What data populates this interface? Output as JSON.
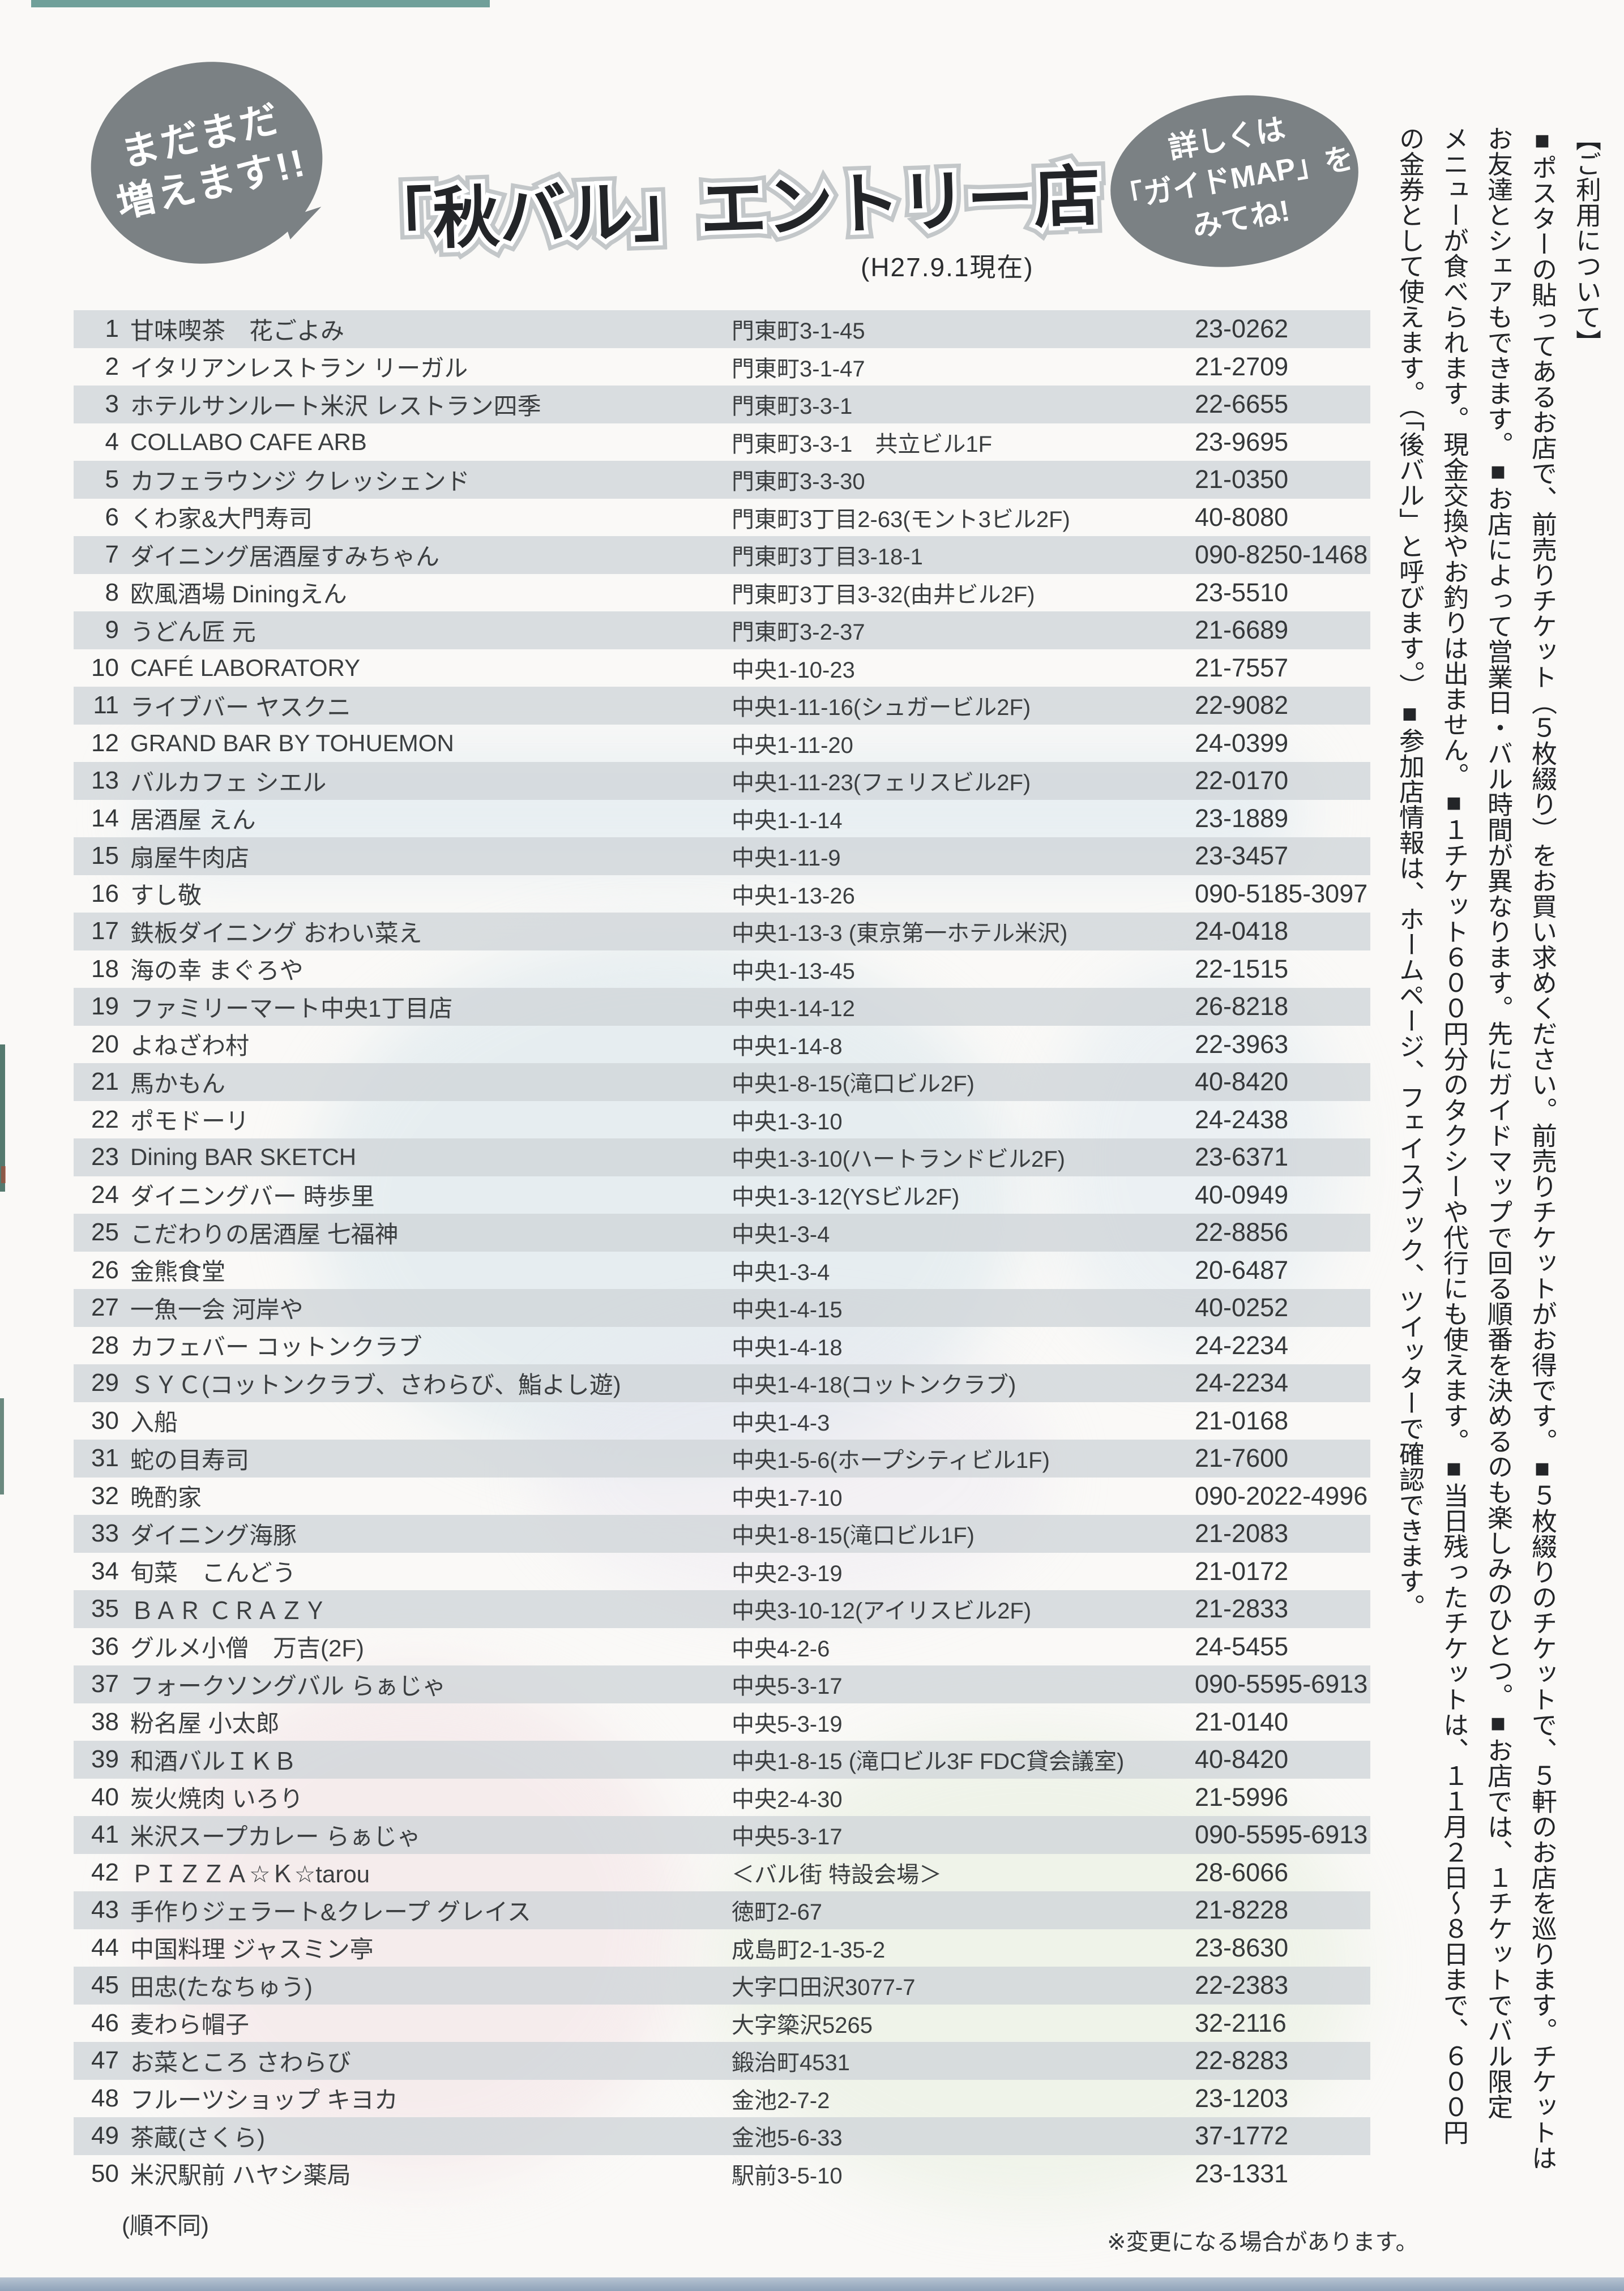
{
  "header": {
    "badge_left": {
      "line1": "まだまだ",
      "line2": "増えます!!"
    },
    "title": "「秋バル」エントリー店",
    "title_date": "(H27.9.1現在)",
    "badge_right": {
      "line1": "詳しくは",
      "line2": "「ガイドMAP」を",
      "line3": "みてね!"
    }
  },
  "usage_notes": {
    "columns": [
      "【ご利用について】",
      "■ポスターの貼ってあるお店で、前売りチケット（５枚綴り）をお買い求めください。前売りチケットがお得です。■５枚綴りのチケットで、５軒のお店を巡ります。チケットは",
      "お友達とシェアもできます。■お店によって営業日・バル時間が異なります。先にガイドマップで回る順番を決めるのも楽しみのひとつ。■お店では、１チケットでバル限定",
      "メニューが食べられます。現金交換やお釣りは出ません。■１チケット６００円分のタクシーや代行にも使えます。■当日残ったチケットは、１１月２日〜８日まで、６００円",
      "の金券として使えます。（「後バル」と呼びます。）■参加店情報は、ホームページ、フェイスブック、ツイッターで確認できます。"
    ]
  },
  "stores": [
    {
      "no": "1",
      "name": "甘味喫茶　花ごよみ",
      "address": "門東町3-1-45",
      "phone": "23-0262"
    },
    {
      "no": "2",
      "name": "イタリアンレストラン リーガル",
      "address": "門東町3-1-47",
      "phone": "21-2709"
    },
    {
      "no": "3",
      "name": "ホテルサンルート米沢 レストラン四季",
      "address": "門東町3-3-1",
      "phone": "22-6655"
    },
    {
      "no": "4",
      "name": "COLLABO CAFE ARB",
      "address": "門東町3-3-1　共立ビル1F",
      "phone": "23-9695"
    },
    {
      "no": "5",
      "name": "カフェラウンジ クレッシェンド",
      "address": "門東町3-3-30",
      "phone": "21-0350"
    },
    {
      "no": "6",
      "name": "くわ家&大門寿司",
      "address": "門東町3丁目2-63(モント3ビル2F)",
      "phone": "40-8080"
    },
    {
      "no": "7",
      "name": "ダイニング居酒屋すみちゃん",
      "address": "門東町3丁目3-18-1",
      "phone": "090-8250-1468"
    },
    {
      "no": "8",
      "name": "欧風酒場 Diningえん",
      "address": "門東町3丁目3-32(由井ビル2F)",
      "phone": "23-5510"
    },
    {
      "no": "9",
      "name": "うどん匠 元",
      "address": "門東町3-2-37",
      "phone": "21-6689"
    },
    {
      "no": "10",
      "name": "CAFÉ LABORATORY",
      "address": "中央1-10-23",
      "phone": "21-7557"
    },
    {
      "no": "11",
      "name": "ライブバー ヤスクニ",
      "address": "中央1-11-16(シュガービル2F)",
      "phone": "22-9082"
    },
    {
      "no": "12",
      "name": "GRAND BAR BY TOHUEMON",
      "address": "中央1-11-20",
      "phone": "24-0399"
    },
    {
      "no": "13",
      "name": "バルカフェ シエル",
      "address": "中央1-11-23(フェリスビル2F)",
      "phone": "22-0170"
    },
    {
      "no": "14",
      "name": "居酒屋 えん",
      "address": "中央1-1-14",
      "phone": "23-1889"
    },
    {
      "no": "15",
      "name": "扇屋牛肉店",
      "address": "中央1-11-9",
      "phone": "23-3457"
    },
    {
      "no": "16",
      "name": "すし敬",
      "address": "中央1-13-26",
      "phone": "090-5185-3097"
    },
    {
      "no": "17",
      "name": "鉄板ダイニング おわい菜え",
      "address": "中央1-13-3 (東京第一ホテル米沢)",
      "phone": "24-0418"
    },
    {
      "no": "18",
      "name": "海の幸 まぐろや",
      "address": "中央1-13-45",
      "phone": "22-1515"
    },
    {
      "no": "19",
      "name": "ファミリーマート中央1丁目店",
      "address": "中央1-14-12",
      "phone": "26-8218"
    },
    {
      "no": "20",
      "name": "よねざわ村",
      "address": "中央1-14-8",
      "phone": "22-3963"
    },
    {
      "no": "21",
      "name": "馬かもん",
      "address": "中央1-8-15(滝口ビル2F)",
      "phone": "40-8420"
    },
    {
      "no": "22",
      "name": "ポモドーリ",
      "address": "中央1-3-10",
      "phone": "24-2438"
    },
    {
      "no": "23",
      "name": "Dining BAR SKETCH",
      "address": "中央1-3-10(ハートランドビル2F)",
      "phone": "23-6371"
    },
    {
      "no": "24",
      "name": "ダイニングバー 時歩里",
      "address": "中央1-3-12(YSビル2F)",
      "phone": "40-0949"
    },
    {
      "no": "25",
      "name": "こだわりの居酒屋 七福神",
      "address": "中央1-3-4",
      "phone": "22-8856"
    },
    {
      "no": "26",
      "name": "金熊食堂",
      "address": "中央1-3-4",
      "phone": "20-6487"
    },
    {
      "no": "27",
      "name": "一魚一会 河岸や",
      "address": "中央1-4-15",
      "phone": "40-0252"
    },
    {
      "no": "28",
      "name": "カフェバー コットンクラブ",
      "address": "中央1-4-18",
      "phone": "24-2234"
    },
    {
      "no": "29",
      "name": "ＳＹＣ(コットンクラブ、さわらび、鮨よし遊)",
      "address": "中央1-4-18(コットンクラブ)",
      "phone": "24-2234"
    },
    {
      "no": "30",
      "name": "入船",
      "address": "中央1-4-3",
      "phone": "21-0168"
    },
    {
      "no": "31",
      "name": "蛇の目寿司",
      "address": "中央1-5-6(ホープシティビル1F)",
      "phone": "21-7600"
    },
    {
      "no": "32",
      "name": "晩酌家",
      "address": "中央1-7-10",
      "phone": "090-2022-4996"
    },
    {
      "no": "33",
      "name": "ダイニング海豚",
      "address": "中央1-8-15(滝口ビル1F)",
      "phone": "21-2083"
    },
    {
      "no": "34",
      "name": "旬菜　こんどう",
      "address": "中央2-3-19",
      "phone": "21-0172"
    },
    {
      "no": "35",
      "name": "ＢＡＲ ＣＲＡＺＹ",
      "address": "中央3-10-12(アイリスビル2F)",
      "phone": "21-2833"
    },
    {
      "no": "36",
      "name": "グルメ小僧　万吉(2F)",
      "address": "中央4-2-6",
      "phone": "24-5455"
    },
    {
      "no": "37",
      "name": "フォークソングバル らぁじゃ",
      "address": "中央5-3-17",
      "phone": "090-5595-6913"
    },
    {
      "no": "38",
      "name": "粉名屋 小太郎",
      "address": "中央5-3-19",
      "phone": "21-0140"
    },
    {
      "no": "39",
      "name": "和酒バルＩＫＢ",
      "address": "中央1-8-15 (滝口ビル3F FDC貸会議室)",
      "phone": "40-8420"
    },
    {
      "no": "40",
      "name": "炭火焼肉 いろり",
      "address": "中央2-4-30",
      "phone": "21-5996"
    },
    {
      "no": "41",
      "name": "米沢スープカレー らぁじゃ",
      "address": "中央5-3-17",
      "phone": "090-5595-6913"
    },
    {
      "no": "42",
      "name": "ＰＩＺＺＡ☆Ｋ☆tarou",
      "address": "＜バル街 特設会場＞",
      "phone": "28-6066"
    },
    {
      "no": "43",
      "name": "手作りジェラート&クレープ グレイス",
      "address": "徳町2-67",
      "phone": "21-8228"
    },
    {
      "no": "44",
      "name": "中国料理 ジャスミン亭",
      "address": "成島町2-1-35-2",
      "phone": "23-8630"
    },
    {
      "no": "45",
      "name": "田忠(たなちゅう)",
      "address": "大字口田沢3077-7",
      "phone": "22-2383"
    },
    {
      "no": "46",
      "name": "麦わら帽子",
      "address": "大字簗沢5265",
      "phone": "32-2116"
    },
    {
      "no": "47",
      "name": "お菜ところ さわらび",
      "address": "鍛治町4531",
      "phone": "22-8283"
    },
    {
      "no": "48",
      "name": "フルーツショップ キヨカ",
      "address": "金池2-7-2",
      "phone": "23-1203"
    },
    {
      "no": "49",
      "name": "茶蔵(さくら)",
      "address": "金池5-6-33",
      "phone": "37-1772"
    },
    {
      "no": "50",
      "name": "米沢駅前 ハヤシ薬局",
      "address": "駅前3-5-10",
      "phone": "23-1331"
    }
  ],
  "footer": {
    "left": "(順不同)",
    "right": "※変更になる場合があります。"
  },
  "colors": {
    "stripe": "#d1d6da",
    "bubble": "#7b8184",
    "title_outline": "#c3c7c9",
    "paper": "#faf9f7",
    "bottom_strip": "#8fa3ba",
    "top_strip": "#57908a"
  }
}
